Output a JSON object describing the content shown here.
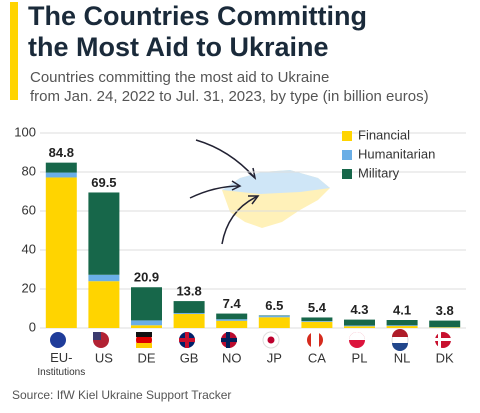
{
  "chart_data": {
    "type": "stacked-bar",
    "title": [
      "The Countries Committing",
      "the Most Aid to Ukraine"
    ],
    "subtitle": [
      "Countries committing the most aid to Ukraine",
      "from Jan. 24, 2022 to Jul. 31, 2023, by type (in billion euros)"
    ],
    "categories": [
      "EU-Institutions",
      "US",
      "DE",
      "GB",
      "NO",
      "JP",
      "CA",
      "PL",
      "NL",
      "DK"
    ],
    "series": [
      {
        "name": "Financial",
        "color": "#ffd400",
        "values": [
          77.2,
          24.0,
          1.4,
          7.2,
          3.7,
          5.5,
          3.2,
          0.9,
          1.0,
          0.3
        ]
      },
      {
        "name": "Humanitarian",
        "color": "#6aaee6",
        "values": [
          2.5,
          3.3,
          2.5,
          0.5,
          0.8,
          0.8,
          0.4,
          0.4,
          0.4,
          0.2
        ]
      },
      {
        "name": "Military",
        "color": "#17674a",
        "values": [
          5.1,
          42.2,
          17.0,
          6.1,
          2.9,
          0.2,
          1.8,
          3.0,
          2.7,
          3.3
        ]
      }
    ],
    "totals": [
      84.8,
      69.5,
      20.9,
      13.8,
      7.4,
      6.5,
      5.4,
      4.3,
      4.1,
      3.8
    ],
    "ylim": [
      0,
      100
    ],
    "yticks": [
      0,
      20,
      40,
      60,
      80,
      100
    ],
    "grid": true,
    "legend": "upper right",
    "source": "Source: IfW Kiel Ukraine Support Tracker"
  }
}
